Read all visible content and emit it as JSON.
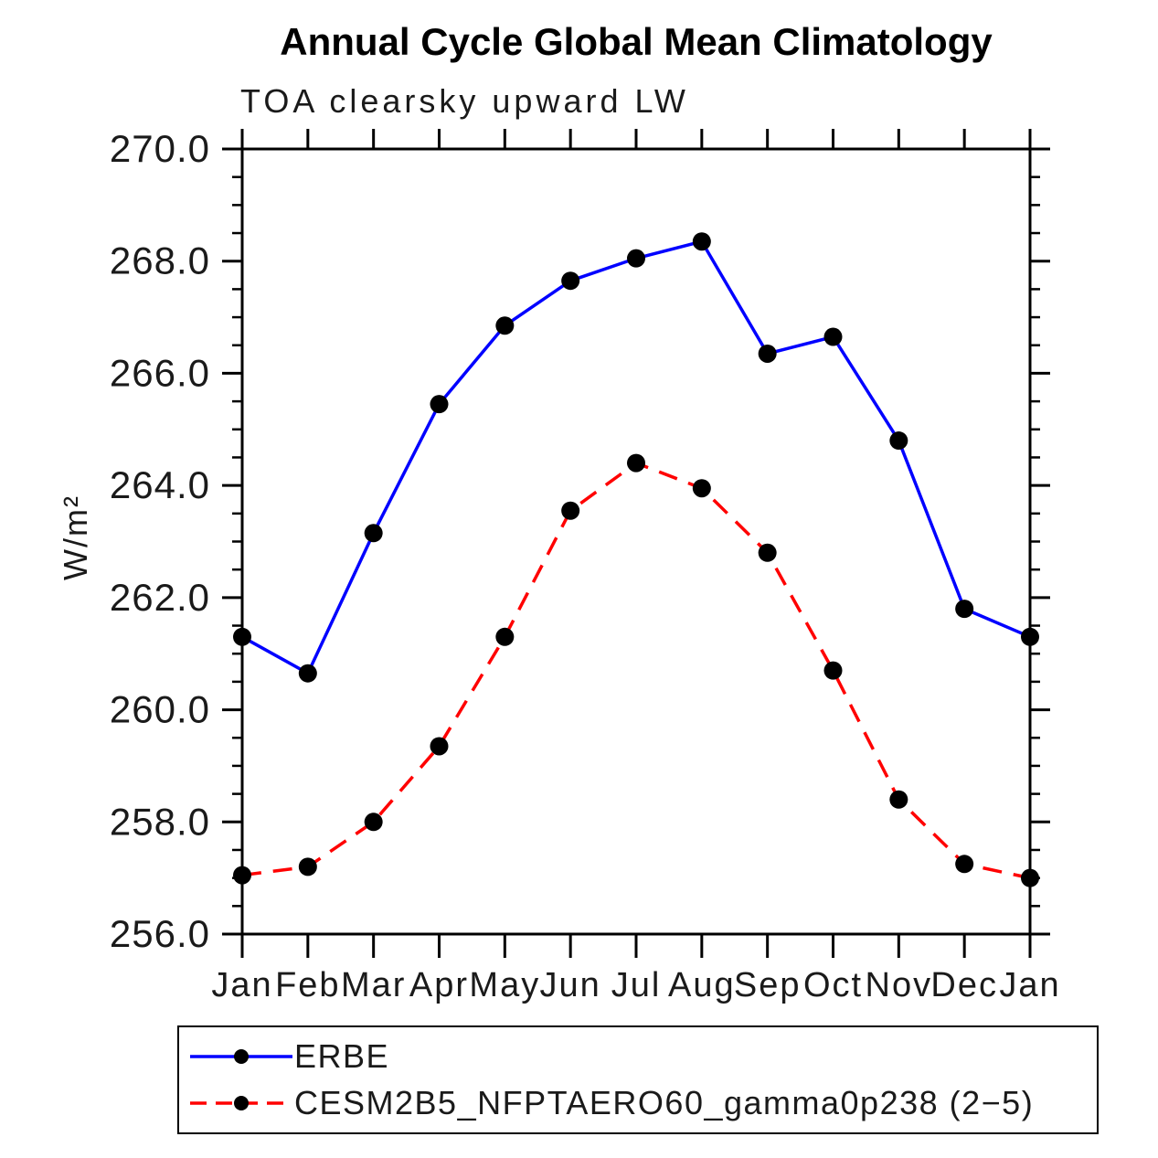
{
  "title": "Annual Cycle Global Mean Climatology",
  "subtitle": "TOA clearsky upward LW",
  "chart_data": {
    "type": "line",
    "title": "Annual Cycle Global Mean Climatology",
    "subtitle": "TOA clearsky upward LW",
    "xlabel": "",
    "ylabel": "W/m²",
    "ylim": [
      256.0,
      270.0
    ],
    "ytick_major_interval": 2.0,
    "ytick_minor_interval": 0.5,
    "ytick_labels": [
      "256.0",
      "258.0",
      "260.0",
      "262.0",
      "264.0",
      "266.0",
      "268.0",
      "270.0"
    ],
    "x_categories": [
      "Jan",
      "Feb",
      "Mar",
      "Apr",
      "May",
      "Jun",
      "Jul",
      "Aug",
      "Sep",
      "Oct",
      "Nov",
      "Dec",
      "Jan"
    ],
    "grid": false,
    "legend_position": "bottom-left-box",
    "marker_shape": "filled-circle",
    "marker_color": "#000000",
    "series": [
      {
        "name": "ERBE",
        "line_color": "#0000ff",
        "line_style": "solid",
        "values": [
          261.3,
          260.65,
          263.15,
          265.45,
          266.85,
          267.65,
          268.05,
          268.35,
          266.35,
          266.65,
          264.8,
          261.8,
          261.3
        ]
      },
      {
        "name": "CESM2B5_NFPTAERO60_gamma0p238 (2−5)",
        "line_color": "#ff0000",
        "line_style": "dashed",
        "values": [
          257.05,
          257.2,
          258.0,
          259.35,
          261.3,
          263.55,
          264.4,
          263.95,
          262.8,
          260.7,
          258.4,
          257.25,
          257.0
        ]
      }
    ]
  }
}
